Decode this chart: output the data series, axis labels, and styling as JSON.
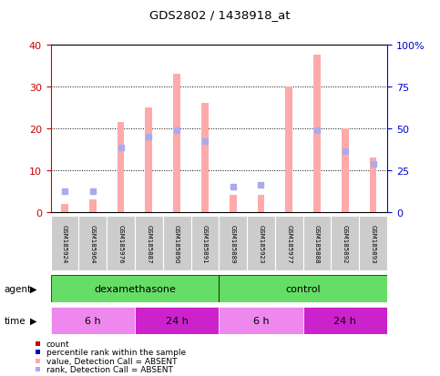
{
  "title": "GDS2802 / 1438918_at",
  "samples": [
    "GSM185924",
    "GSM185964",
    "GSM185976",
    "GSM185887",
    "GSM185890",
    "GSM185891",
    "GSM185889",
    "GSM185923",
    "GSM185977",
    "GSM185888",
    "GSM185892",
    "GSM185893"
  ],
  "value_absent": [
    2.0,
    3.0,
    21.5,
    25.0,
    33.0,
    26.0,
    4.0,
    4.0,
    30.0,
    37.5,
    20.0,
    13.0
  ],
  "rank_absent": [
    5.0,
    5.0,
    15.5,
    18.0,
    19.5,
    17.0,
    6.0,
    6.5,
    null,
    19.5,
    14.5,
    11.5
  ],
  "ylim_left": [
    0,
    40
  ],
  "ylim_right": [
    0,
    100
  ],
  "yticks_left": [
    0,
    10,
    20,
    30,
    40
  ],
  "yticks_right": [
    0,
    25,
    50,
    75,
    100
  ],
  "yticklabels_right": [
    "0",
    "25",
    "50",
    "75",
    "100%"
  ],
  "left_tick_color": "#cc0000",
  "right_tick_color": "#0000cc",
  "agent_groups": [
    {
      "label": "dexamethasone",
      "start": 0,
      "end": 6,
      "color": "#66dd66"
    },
    {
      "label": "control",
      "start": 6,
      "end": 12,
      "color": "#66dd66"
    }
  ],
  "time_groups": [
    {
      "label": "6 h",
      "start": 0,
      "end": 3,
      "color": "#ee88ee"
    },
    {
      "label": "24 h",
      "start": 3,
      "end": 6,
      "color": "#cc22cc"
    },
    {
      "label": "6 h",
      "start": 6,
      "end": 9,
      "color": "#ee88ee"
    },
    {
      "label": "24 h",
      "start": 9,
      "end": 12,
      "color": "#cc22cc"
    }
  ],
  "value_absent_color": "#ffaaaa",
  "rank_absent_color": "#aaaaee",
  "count_color": "#cc0000",
  "percentile_color": "#0000cc",
  "plot_bg": "#ffffff",
  "sample_box_color": "#cccccc",
  "legend_items": [
    {
      "label": "count",
      "color": "#cc0000"
    },
    {
      "label": "percentile rank within the sample",
      "color": "#0000cc"
    },
    {
      "label": "value, Detection Call = ABSENT",
      "color": "#ffaaaa"
    },
    {
      "label": "rank, Detection Call = ABSENT",
      "color": "#aaaaee"
    }
  ],
  "bar_width": 0.25
}
